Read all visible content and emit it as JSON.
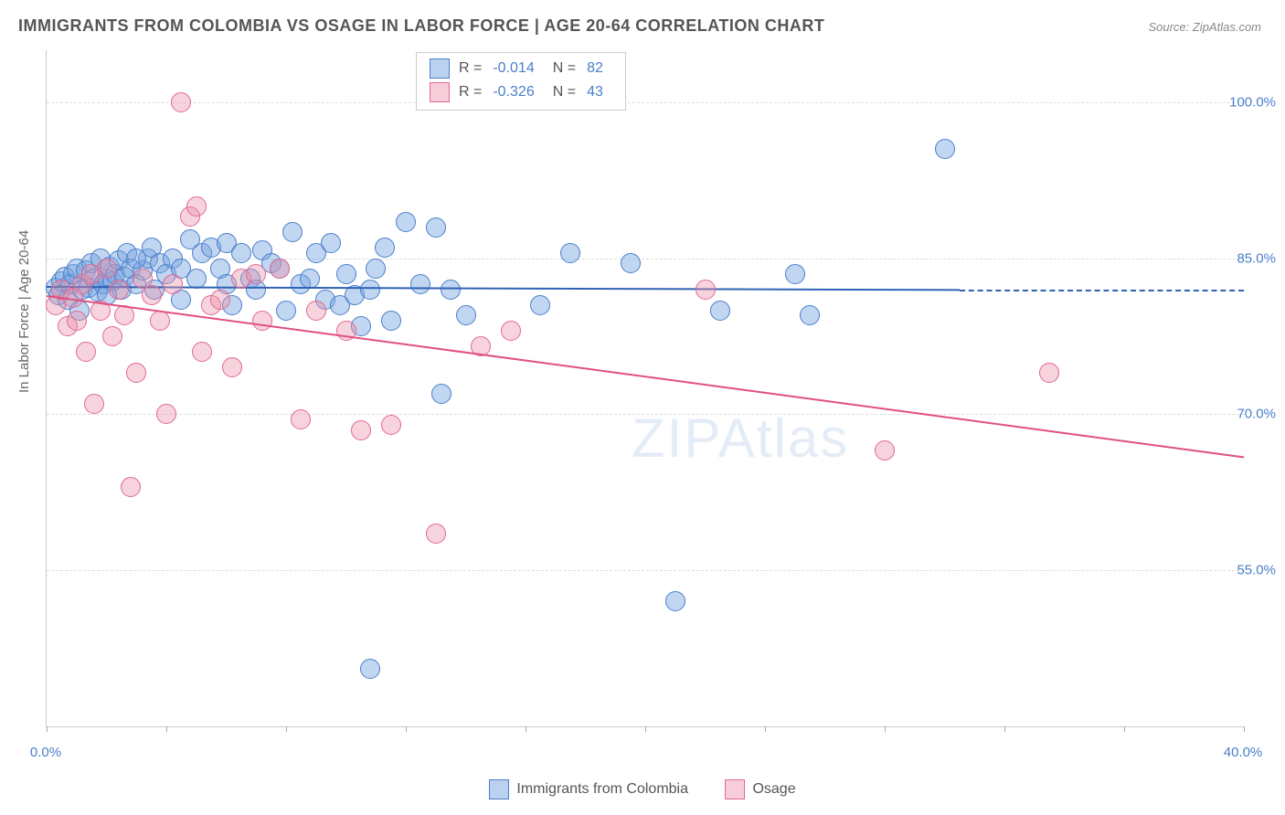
{
  "title": "IMMIGRANTS FROM COLOMBIA VS OSAGE IN LABOR FORCE | AGE 20-64 CORRELATION CHART",
  "source": "Source: ZipAtlas.com",
  "y_axis_label": "In Labor Force | Age 20-64",
  "watermark": "ZIPAtlas",
  "chart": {
    "type": "scatter",
    "background_color": "#ffffff",
    "grid_color": "#dddddd",
    "axis_color": "#cccccc",
    "xlim": [
      0,
      40
    ],
    "ylim": [
      40,
      105
    ],
    "x_ticks": [
      0,
      4,
      8,
      12,
      16,
      20,
      24,
      28,
      32,
      36,
      40
    ],
    "x_tick_labels": {
      "0": "0.0%",
      "40": "40.0%"
    },
    "y_ticks": [
      55,
      70,
      85,
      100
    ],
    "y_tick_labels": {
      "55": "55.0%",
      "70": "70.0%",
      "85": "85.0%",
      "100": "100.0%"
    },
    "marker_radius": 10,
    "series": [
      {
        "name": "Immigrants from Colombia",
        "color_fill": "rgba(118,164,223,0.45)",
        "color_stroke": "#4a7ecb",
        "line_color": "#2f62b5",
        "R": "-0.014",
        "N": "82",
        "trend_start": [
          0,
          82.3
        ],
        "trend_end": [
          30.5,
          82.0
        ],
        "trend_dash_end": [
          40,
          82.0
        ],
        "points": [
          [
            0.3,
            82.2
          ],
          [
            0.4,
            81.5
          ],
          [
            0.5,
            82.8
          ],
          [
            0.6,
            83.2
          ],
          [
            0.7,
            81.0
          ],
          [
            0.8,
            82.5
          ],
          [
            0.9,
            83.5
          ],
          [
            1.0,
            84.0
          ],
          [
            1.1,
            80.0
          ],
          [
            1.2,
            82.0
          ],
          [
            1.3,
            83.8
          ],
          [
            1.4,
            82.2
          ],
          [
            1.5,
            84.5
          ],
          [
            1.6,
            83.0
          ],
          [
            1.7,
            81.8
          ],
          [
            1.8,
            85.0
          ],
          [
            1.9,
            82.5
          ],
          [
            2.0,
            83.0
          ],
          [
            2.1,
            84.2
          ],
          [
            2.2,
            82.8
          ],
          [
            2.3,
            83.5
          ],
          [
            2.4,
            84.8
          ],
          [
            2.5,
            82.0
          ],
          [
            2.6,
            83.2
          ],
          [
            2.7,
            85.5
          ],
          [
            2.8,
            84.0
          ],
          [
            3.0,
            82.5
          ],
          [
            3.2,
            83.8
          ],
          [
            3.4,
            85.0
          ],
          [
            3.5,
            86.0
          ],
          [
            3.6,
            82.0
          ],
          [
            3.8,
            84.5
          ],
          [
            4.0,
            83.5
          ],
          [
            4.2,
            85.0
          ],
          [
            4.5,
            84.0
          ],
          [
            4.8,
            86.8
          ],
          [
            5.0,
            83.0
          ],
          [
            5.2,
            85.5
          ],
          [
            5.5,
            86.0
          ],
          [
            5.8,
            84.0
          ],
          [
            6.0,
            86.5
          ],
          [
            6.2,
            80.5
          ],
          [
            6.5,
            85.5
          ],
          [
            6.8,
            83.0
          ],
          [
            7.0,
            82.0
          ],
          [
            7.2,
            85.8
          ],
          [
            7.5,
            84.5
          ],
          [
            7.8,
            84.0
          ],
          [
            8.0,
            80.0
          ],
          [
            8.2,
            87.5
          ],
          [
            8.5,
            82.5
          ],
          [
            8.8,
            83.0
          ],
          [
            9.0,
            85.5
          ],
          [
            9.3,
            81.0
          ],
          [
            9.5,
            86.5
          ],
          [
            9.8,
            80.5
          ],
          [
            10.0,
            83.5
          ],
          [
            10.3,
            81.5
          ],
          [
            10.5,
            78.5
          ],
          [
            10.8,
            82.0
          ],
          [
            11.0,
            84.0
          ],
          [
            11.3,
            86.0
          ],
          [
            11.5,
            79.0
          ],
          [
            12.0,
            88.5
          ],
          [
            12.5,
            82.5
          ],
          [
            13.0,
            88.0
          ],
          [
            13.2,
            72.0
          ],
          [
            13.5,
            82.0
          ],
          [
            10.8,
            45.5
          ],
          [
            14.0,
            79.5
          ],
          [
            16.5,
            80.5
          ],
          [
            17.5,
            85.5
          ],
          [
            19.5,
            84.5
          ],
          [
            21.0,
            52.0
          ],
          [
            22.5,
            80.0
          ],
          [
            25.0,
            83.5
          ],
          [
            25.5,
            79.5
          ],
          [
            30.0,
            95.5
          ],
          [
            6.0,
            82.5
          ],
          [
            4.5,
            81.0
          ],
          [
            3.0,
            85.0
          ],
          [
            2.0,
            81.5
          ]
        ]
      },
      {
        "name": "Osage",
        "color_fill": "rgba(235,145,170,0.4)",
        "color_stroke": "#e26890",
        "line_color": "#e05080",
        "R": "-0.326",
        "N": "43",
        "trend_start": [
          0,
          81.5
        ],
        "trend_end": [
          40,
          66.0
        ],
        "points": [
          [
            0.3,
            80.5
          ],
          [
            0.5,
            82.0
          ],
          [
            0.7,
            78.5
          ],
          [
            0.9,
            81.2
          ],
          [
            1.0,
            79.0
          ],
          [
            1.2,
            82.5
          ],
          [
            1.3,
            76.0
          ],
          [
            1.5,
            83.5
          ],
          [
            1.6,
            71.0
          ],
          [
            1.8,
            80.0
          ],
          [
            2.0,
            84.0
          ],
          [
            2.2,
            77.5
          ],
          [
            2.4,
            82.0
          ],
          [
            2.6,
            79.5
          ],
          [
            2.8,
            63.0
          ],
          [
            3.0,
            74.0
          ],
          [
            3.2,
            83.0
          ],
          [
            3.5,
            81.5
          ],
          [
            3.8,
            79.0
          ],
          [
            4.0,
            70.0
          ],
          [
            4.2,
            82.5
          ],
          [
            4.5,
            100.0
          ],
          [
            4.8,
            89.0
          ],
          [
            5.0,
            90.0
          ],
          [
            5.2,
            76.0
          ],
          [
            5.5,
            80.5
          ],
          [
            5.8,
            81.0
          ],
          [
            6.2,
            74.5
          ],
          [
            6.5,
            83.0
          ],
          [
            7.0,
            83.5
          ],
          [
            7.2,
            79.0
          ],
          [
            7.8,
            84.0
          ],
          [
            8.5,
            69.5
          ],
          [
            9.0,
            80.0
          ],
          [
            10.0,
            78.0
          ],
          [
            10.5,
            68.5
          ],
          [
            11.5,
            69.0
          ],
          [
            13.0,
            58.5
          ],
          [
            14.5,
            76.5
          ],
          [
            15.5,
            78.0
          ],
          [
            22.0,
            82.0
          ],
          [
            28.0,
            66.5
          ],
          [
            33.5,
            74.0
          ]
        ]
      }
    ]
  },
  "legend_top": {
    "r_label": "R =",
    "n_label": "N ="
  },
  "legend_bottom": {
    "items": [
      "Immigrants from Colombia",
      "Osage"
    ]
  }
}
